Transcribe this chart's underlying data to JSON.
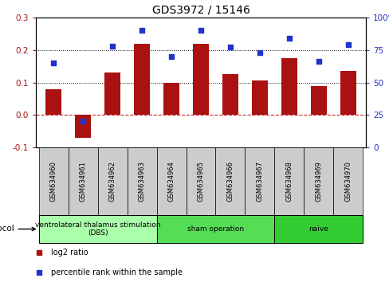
{
  "title": "GDS3972 / 15146",
  "samples": [
    "GSM634960",
    "GSM634961",
    "GSM634962",
    "GSM634963",
    "GSM634964",
    "GSM634965",
    "GSM634966",
    "GSM634967",
    "GSM634968",
    "GSM634969",
    "GSM634970"
  ],
  "log2_ratio": [
    0.08,
    -0.07,
    0.13,
    0.22,
    0.1,
    0.22,
    0.125,
    0.105,
    0.175,
    0.09,
    0.135
  ],
  "percentile_rank": [
    65,
    20,
    78,
    90,
    70,
    90,
    77,
    73,
    84,
    66,
    79
  ],
  "groups": [
    {
      "label": "ventrolateral thalamus stimulation\n(DBS)",
      "start": 0,
      "end": 3,
      "color": "#aaffaa"
    },
    {
      "label": "sham operation",
      "start": 4,
      "end": 7,
      "color": "#55dd55"
    },
    {
      "label": "naive",
      "start": 8,
      "end": 10,
      "color": "#33cc33"
    }
  ],
  "bar_color": "#aa1111",
  "dot_color": "#2233cc",
  "ylim_left": [
    -0.1,
    0.3
  ],
  "ylim_right": [
    0,
    100
  ],
  "yticks_left": [
    -0.1,
    0.0,
    0.1,
    0.2,
    0.3
  ],
  "yticks_right": [
    0,
    25,
    50,
    75,
    100
  ],
  "hline_zero_color": "#cc2222",
  "plot_bg": "#ffffff",
  "sample_box_color": "#cccccc",
  "legend_items": [
    {
      "color": "#aa1111",
      "label": "log2 ratio"
    },
    {
      "color": "#2233cc",
      "label": "percentile rank within the sample"
    }
  ]
}
